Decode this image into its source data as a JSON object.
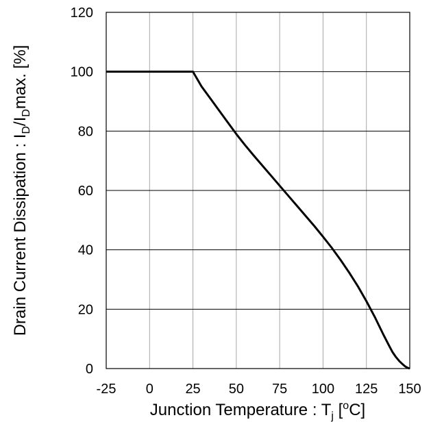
{
  "chart_data": {
    "type": "line",
    "xlabel": {
      "main": "Junction Temperature : T",
      "sub": "j",
      "tail": " [",
      "degree": "o",
      "unit": "C]"
    },
    "ylabel": {
      "part1": "Drain Current Dissipation : I",
      "sub1": "D",
      "part2": "/I",
      "sub2": "D",
      "part3": "max. [%]"
    },
    "xlim": [
      -25,
      150
    ],
    "ylim": [
      0,
      120
    ],
    "xticks": [
      -25,
      0,
      25,
      50,
      75,
      100,
      125,
      150
    ],
    "yticks": [
      0,
      20,
      40,
      60,
      80,
      100,
      120
    ],
    "grid": true,
    "series": [
      {
        "x": [
          -25,
          25,
          30,
          35,
          40,
          45,
          50,
          55,
          60,
          65,
          70,
          75,
          80,
          85,
          90,
          95,
          100,
          105,
          110,
          115,
          120,
          125,
          130,
          135,
          138,
          140,
          142,
          144,
          146,
          147,
          148,
          149,
          150
        ],
        "y": [
          100,
          100,
          95,
          91,
          87,
          83,
          79,
          75.3,
          71.8,
          68.4,
          65,
          61.6,
          58.2,
          54.8,
          51.4,
          48,
          44.4,
          40.7,
          36.7,
          32.4,
          27.8,
          22.7,
          17.2,
          11.2,
          7.8,
          5.6,
          3.9,
          2.5,
          1.4,
          0.9,
          0.5,
          0.2,
          0
        ],
        "color": "#000000"
      }
    ]
  }
}
